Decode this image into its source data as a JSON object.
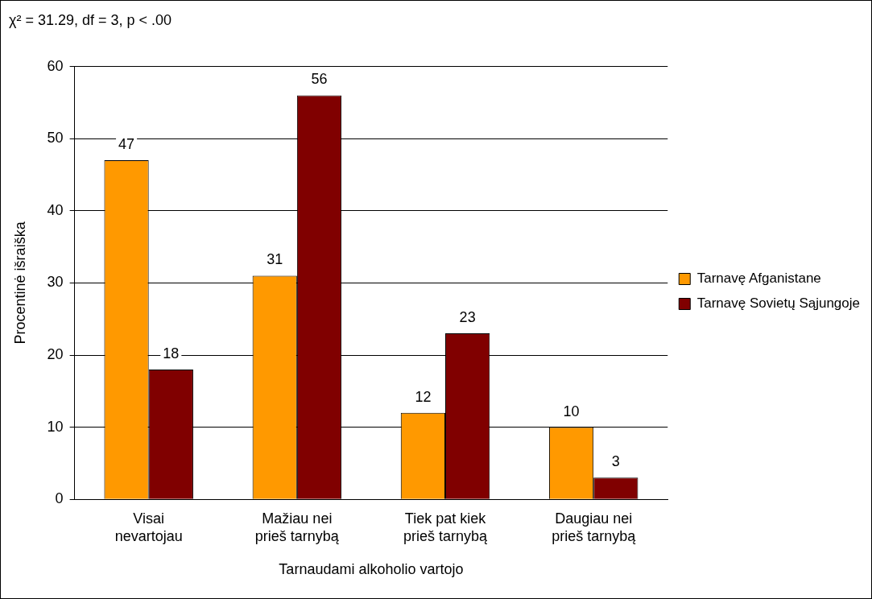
{
  "chart_data": {
    "type": "bar",
    "title": "χ² = 31.29, df = 3, p < .00",
    "xlabel": "Tarnaudami alkoholio vartojo",
    "ylabel": "Procentinė išraiška",
    "categories": [
      "Visai nevartojau",
      "Mažiau nei prieš tarnybą",
      "Tiek pat kiek prieš tarnybą",
      "Daugiau nei prieš tarnybą"
    ],
    "series": [
      {
        "name": "Tarnavę Afganistane",
        "color": "#ff9900",
        "values": [
          47,
          31,
          12,
          10
        ]
      },
      {
        "name": "Tarnavę Sovietų Sąjungoje",
        "color": "#800000",
        "values": [
          18,
          56,
          23,
          3
        ]
      }
    ],
    "ylim": [
      0,
      60
    ],
    "yticks": [
      0,
      10,
      20,
      30,
      40,
      50,
      60
    ],
    "grid": "y",
    "legend": "right",
    "data_labels": true
  }
}
